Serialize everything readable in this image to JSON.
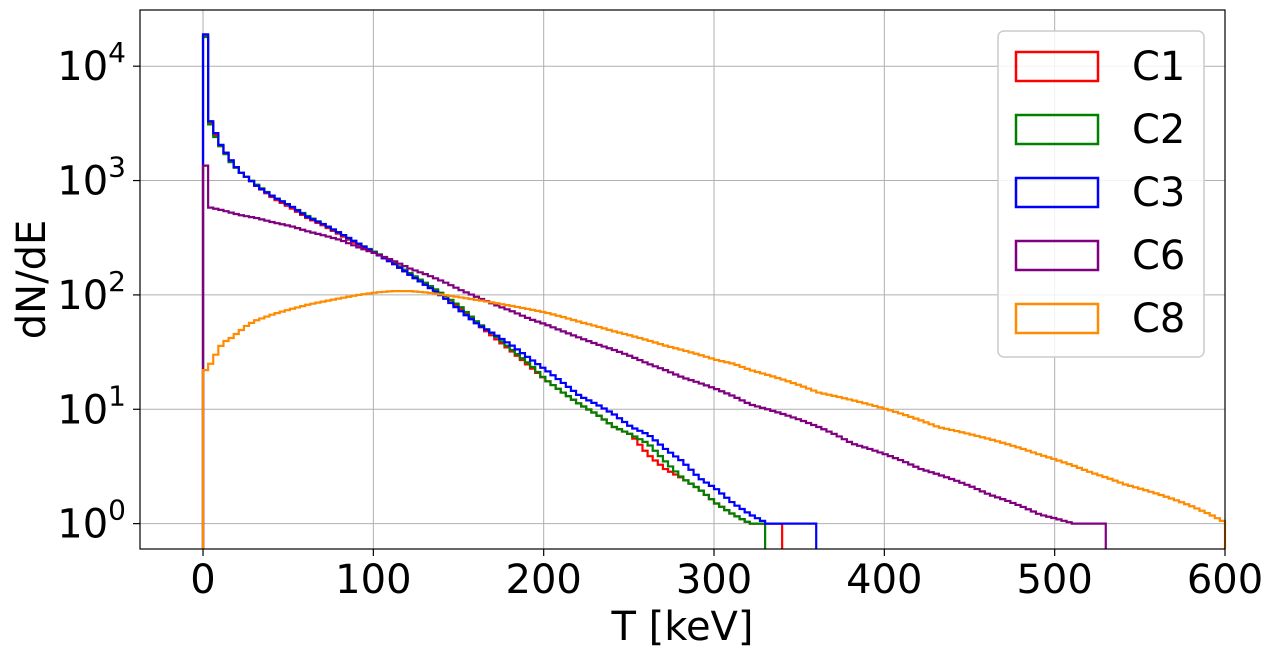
{
  "chart_data": {
    "type": "histogram",
    "xlabel": "T [keV]",
    "ylabel": "dN/dE",
    "yscale": "log",
    "xlim": [
      -37,
      600
    ],
    "ylim": [
      0.6,
      31000
    ],
    "grid": true,
    "legend_position": "top-right",
    "x_ticks": [
      0,
      100,
      200,
      300,
      400,
      500,
      600
    ],
    "x_tick_labels": [
      "0",
      "100",
      "200",
      "300",
      "400",
      "500",
      "600"
    ],
    "y_ticks": [
      1,
      10,
      100,
      1000,
      10000
    ],
    "y_tick_labels": [
      {
        "base": "10",
        "exp": "0"
      },
      {
        "base": "10",
        "exp": "1"
      },
      {
        "base": "10",
        "exp": "2"
      },
      {
        "base": "10",
        "exp": "3"
      },
      {
        "base": "10",
        "exp": "4"
      }
    ],
    "bin_width": 3,
    "series": [
      {
        "name": "C1",
        "color": "#ff0000",
        "points": [
          [
            0,
            18500
          ],
          [
            3,
            3200
          ],
          [
            6,
            2500
          ],
          [
            9,
            2000
          ],
          [
            12,
            1750
          ],
          [
            15,
            1500
          ],
          [
            20,
            1200
          ],
          [
            25,
            1050
          ],
          [
            30,
            900
          ],
          [
            40,
            700
          ],
          [
            50,
            580
          ],
          [
            60,
            470
          ],
          [
            70,
            400
          ],
          [
            80,
            330
          ],
          [
            90,
            270
          ],
          [
            100,
            230
          ],
          [
            110,
            190
          ],
          [
            120,
            150
          ],
          [
            130,
            120
          ],
          [
            140,
            100
          ],
          [
            150,
            75
          ],
          [
            160,
            55
          ],
          [
            170,
            42
          ],
          [
            180,
            32
          ],
          [
            190,
            24
          ],
          [
            200,
            18
          ],
          [
            210,
            14
          ],
          [
            220,
            11
          ],
          [
            230,
            9
          ],
          [
            240,
            7
          ],
          [
            250,
            6
          ],
          [
            260,
            4
          ],
          [
            270,
            3
          ],
          [
            280,
            2.5
          ],
          [
            290,
            2
          ],
          [
            300,
            1.5
          ],
          [
            310,
            1.2
          ],
          [
            320,
            1
          ],
          [
            330,
            1
          ],
          [
            340,
            1
          ]
        ]
      },
      {
        "name": "C2",
        "color": "#008000",
        "points": [
          [
            0,
            18000
          ],
          [
            3,
            3100
          ],
          [
            6,
            2400
          ],
          [
            9,
            2000
          ],
          [
            12,
            1700
          ],
          [
            15,
            1450
          ],
          [
            20,
            1200
          ],
          [
            25,
            1050
          ],
          [
            30,
            920
          ],
          [
            40,
            720
          ],
          [
            50,
            600
          ],
          [
            60,
            490
          ],
          [
            70,
            410
          ],
          [
            80,
            340
          ],
          [
            90,
            280
          ],
          [
            100,
            235
          ],
          [
            110,
            195
          ],
          [
            120,
            155
          ],
          [
            130,
            125
          ],
          [
            140,
            100
          ],
          [
            150,
            78
          ],
          [
            160,
            57
          ],
          [
            170,
            44
          ],
          [
            180,
            33
          ],
          [
            190,
            25
          ],
          [
            200,
            18
          ],
          [
            210,
            14
          ],
          [
            220,
            11
          ],
          [
            230,
            9
          ],
          [
            240,
            7
          ],
          [
            250,
            6
          ],
          [
            260,
            5
          ],
          [
            270,
            3.5
          ],
          [
            280,
            2.5
          ],
          [
            290,
            2
          ],
          [
            300,
            1.5
          ],
          [
            310,
            1.2
          ],
          [
            320,
            1
          ],
          [
            330,
            1
          ]
        ]
      },
      {
        "name": "C3",
        "color": "#0000ff",
        "points": [
          [
            0,
            19000
          ],
          [
            3,
            3300
          ],
          [
            6,
            2600
          ],
          [
            9,
            2050
          ],
          [
            12,
            1750
          ],
          [
            15,
            1500
          ],
          [
            20,
            1200
          ],
          [
            25,
            1050
          ],
          [
            30,
            900
          ],
          [
            40,
            720
          ],
          [
            50,
            600
          ],
          [
            60,
            480
          ],
          [
            70,
            410
          ],
          [
            80,
            340
          ],
          [
            90,
            280
          ],
          [
            100,
            230
          ],
          [
            110,
            190
          ],
          [
            120,
            150
          ],
          [
            130,
            120
          ],
          [
            140,
            95
          ],
          [
            150,
            72
          ],
          [
            160,
            55
          ],
          [
            170,
            45
          ],
          [
            180,
            36
          ],
          [
            190,
            28
          ],
          [
            200,
            22
          ],
          [
            210,
            17
          ],
          [
            220,
            13
          ],
          [
            230,
            11
          ],
          [
            240,
            9
          ],
          [
            250,
            7
          ],
          [
            260,
            6
          ],
          [
            270,
            4.5
          ],
          [
            280,
            3.5
          ],
          [
            290,
            2.5
          ],
          [
            300,
            2
          ],
          [
            310,
            1.5
          ],
          [
            320,
            1.2
          ],
          [
            330,
            1
          ],
          [
            340,
            1
          ],
          [
            350,
            1
          ],
          [
            360,
            1
          ]
        ]
      },
      {
        "name": "C6",
        "color": "#800080",
        "points": [
          [
            0,
            1350
          ],
          [
            3,
            580
          ],
          [
            10,
            550
          ],
          [
            20,
            500
          ],
          [
            30,
            470
          ],
          [
            40,
            430
          ],
          [
            50,
            400
          ],
          [
            60,
            360
          ],
          [
            70,
            330
          ],
          [
            80,
            300
          ],
          [
            90,
            260
          ],
          [
            100,
            230
          ],
          [
            110,
            200
          ],
          [
            120,
            170
          ],
          [
            130,
            150
          ],
          [
            140,
            130
          ],
          [
            150,
            110
          ],
          [
            160,
            95
          ],
          [
            170,
            82
          ],
          [
            180,
            72
          ],
          [
            190,
            62
          ],
          [
            200,
            55
          ],
          [
            210,
            48
          ],
          [
            220,
            42
          ],
          [
            230,
            37
          ],
          [
            240,
            33
          ],
          [
            250,
            29
          ],
          [
            260,
            25
          ],
          [
            270,
            22
          ],
          [
            280,
            19
          ],
          [
            290,
            17
          ],
          [
            300,
            15
          ],
          [
            310,
            13
          ],
          [
            320,
            11
          ],
          [
            330,
            10
          ],
          [
            340,
            9
          ],
          [
            350,
            8
          ],
          [
            360,
            7
          ],
          [
            370,
            6
          ],
          [
            380,
            5
          ],
          [
            390,
            4.5
          ],
          [
            400,
            4
          ],
          [
            410,
            3.5
          ],
          [
            420,
            3
          ],
          [
            430,
            2.7
          ],
          [
            440,
            2.4
          ],
          [
            450,
            2.1
          ],
          [
            460,
            1.8
          ],
          [
            470,
            1.6
          ],
          [
            480,
            1.4
          ],
          [
            490,
            1.2
          ],
          [
            500,
            1.1
          ],
          [
            510,
            1
          ],
          [
            520,
            1
          ],
          [
            530,
            1
          ]
        ]
      },
      {
        "name": "C8",
        "color": "#ff8c00",
        "points": [
          [
            0,
            22
          ],
          [
            3,
            25
          ],
          [
            6,
            30
          ],
          [
            10,
            38
          ],
          [
            15,
            42
          ],
          [
            20,
            48
          ],
          [
            25,
            55
          ],
          [
            30,
            60
          ],
          [
            40,
            68
          ],
          [
            50,
            75
          ],
          [
            60,
            82
          ],
          [
            70,
            88
          ],
          [
            80,
            94
          ],
          [
            90,
            100
          ],
          [
            100,
            105
          ],
          [
            110,
            108
          ],
          [
            120,
            108
          ],
          [
            130,
            105
          ],
          [
            140,
            100
          ],
          [
            150,
            95
          ],
          [
            160,
            90
          ],
          [
            170,
            85
          ],
          [
            180,
            80
          ],
          [
            190,
            75
          ],
          [
            200,
            70
          ],
          [
            210,
            64
          ],
          [
            220,
            58
          ],
          [
            230,
            53
          ],
          [
            240,
            48
          ],
          [
            250,
            44
          ],
          [
            260,
            40
          ],
          [
            270,
            36
          ],
          [
            280,
            33
          ],
          [
            290,
            30
          ],
          [
            300,
            27
          ],
          [
            310,
            25
          ],
          [
            320,
            22
          ],
          [
            330,
            20
          ],
          [
            340,
            18
          ],
          [
            350,
            16
          ],
          [
            360,
            14
          ],
          [
            370,
            13
          ],
          [
            380,
            12
          ],
          [
            390,
            11
          ],
          [
            400,
            10
          ],
          [
            410,
            9
          ],
          [
            420,
            8
          ],
          [
            430,
            7
          ],
          [
            440,
            6.5
          ],
          [
            450,
            6
          ],
          [
            460,
            5.5
          ],
          [
            470,
            5
          ],
          [
            480,
            4.5
          ],
          [
            490,
            4
          ],
          [
            500,
            3.6
          ],
          [
            510,
            3.2
          ],
          [
            520,
            2.8
          ],
          [
            530,
            2.5
          ],
          [
            540,
            2.2
          ],
          [
            550,
            2
          ],
          [
            560,
            1.8
          ],
          [
            570,
            1.6
          ],
          [
            580,
            1.4
          ],
          [
            590,
            1.2
          ],
          [
            600,
            1
          ]
        ]
      }
    ]
  }
}
